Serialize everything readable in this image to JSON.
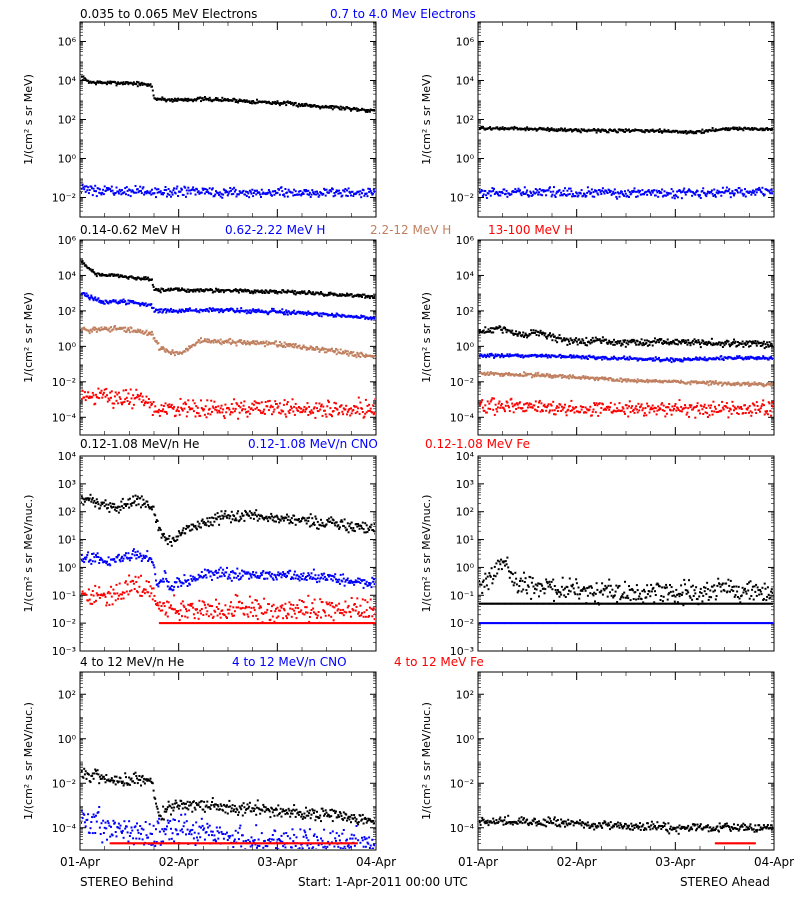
{
  "page": {
    "footer_left": "STEREO Behind",
    "footer_center": "Start:  1-Apr-2011 00:00 UTC",
    "footer_right": "STEREO Ahead",
    "x_ticks": [
      "01-Apr",
      "02-Apr",
      "03-Apr",
      "04-Apr"
    ]
  },
  "rows": [
    {
      "legend": [
        {
          "text": "0.035 to 0.065 MeV Electrons",
          "color": "#000000"
        },
        {
          "text": "0.7 to 4.0 Mev Electrons",
          "color": "#0000ff"
        }
      ]
    },
    {
      "legend": [
        {
          "text": "0.14-0.62 MeV H",
          "color": "#000000"
        },
        {
          "text": "0.62-2.22 MeV H",
          "color": "#0000ff"
        },
        {
          "text": "2.2-12 MeV H",
          "color": "#c08060"
        },
        {
          "text": "13-100 MeV H",
          "color": "#ff0000"
        }
      ]
    },
    {
      "legend": [
        {
          "text": "0.12-1.08 MeV/n He",
          "color": "#000000"
        },
        {
          "text": "0.12-1.08 MeV/n CNO",
          "color": "#0000ff"
        },
        {
          "text": "0.12-1.08 MeV Fe",
          "color": "#ff0000"
        }
      ]
    },
    {
      "legend": [
        {
          "text": "4 to 12 MeV/n He",
          "color": "#000000"
        },
        {
          "text": "4 to 12 MeV/n CNO",
          "color": "#0000ff"
        },
        {
          "text": "4 to 12 MeV Fe",
          "color": "#ff0000"
        }
      ]
    }
  ],
  "chart_data": [
    {
      "id": "behind-electrons",
      "type": "scatter",
      "ylog": true,
      "ylim": [
        0.001,
        10000000
      ],
      "ylabel": "1/(cm² s sr MeV)",
      "yticks": [
        {
          "v": 0.01,
          "label": "10⁻²"
        },
        {
          "v": 1,
          "label": "10⁰"
        },
        {
          "v": 100,
          "label": "10²"
        },
        {
          "v": 10000,
          "label": "10⁴"
        },
        {
          "v": 1000000,
          "label": "10⁶"
        }
      ],
      "xlim": [
        0,
        3
      ],
      "xunit": "days since 01-Apr-2011",
      "series": [
        {
          "color": "#000000",
          "x": [
            0,
            0.1,
            0.3,
            0.5,
            0.72,
            0.74,
            0.9,
            1.2,
            1.5,
            2.0,
            2.5,
            3.0
          ],
          "y": [
            15000,
            8000,
            7500,
            7500,
            5500,
            1200,
            1000,
            1100,
            1000,
            700,
            450,
            280
          ],
          "scatter": 0.05
        },
        {
          "color": "#0000ff",
          "x": [
            0,
            0.5,
            1.0,
            1.5,
            2.0,
            2.5,
            3.0
          ],
          "y": [
            0.025,
            0.02,
            0.02,
            0.018,
            0.018,
            0.018,
            0.018
          ],
          "scatter": 0.12
        }
      ]
    },
    {
      "id": "ahead-electrons",
      "type": "scatter",
      "ylog": true,
      "ylim": [
        0.001,
        10000000
      ],
      "ylabel": "1/(cm² s sr MeV)",
      "yticks": [
        {
          "v": 0.01,
          "label": "10⁻²"
        },
        {
          "v": 1,
          "label": "10⁰"
        },
        {
          "v": 100,
          "label": "10²"
        },
        {
          "v": 10000,
          "label": "10⁴"
        },
        {
          "v": 1000000,
          "label": "10⁶"
        }
      ],
      "xlim": [
        0,
        3
      ],
      "xunit": "days since 01-Apr-2011",
      "series": [
        {
          "color": "#000000",
          "x": [
            0,
            0.5,
            1.0,
            1.5,
            1.9,
            2.2,
            2.5,
            3.0
          ],
          "y": [
            35,
            33,
            28,
            27,
            25,
            22,
            35,
            30
          ],
          "scatter": 0.04
        },
        {
          "color": "#0000ff",
          "x": [
            0,
            1.0,
            2.0,
            3.0
          ],
          "y": [
            0.018,
            0.017,
            0.018,
            0.02
          ],
          "scatter": 0.12
        }
      ]
    },
    {
      "id": "behind-protons",
      "type": "scatter",
      "ylog": true,
      "ylim": [
        1e-05,
        1000000
      ],
      "ylabel": "1/(cm² s sr MeV)",
      "yticks": [
        {
          "v": 0.0001,
          "label": "10⁻⁴"
        },
        {
          "v": 0.01,
          "label": "10⁻²"
        },
        {
          "v": 1,
          "label": "10⁰"
        },
        {
          "v": 100,
          "label": "10²"
        },
        {
          "v": 10000,
          "label": "10⁴"
        },
        {
          "v": 1000000,
          "label": "10⁶"
        }
      ],
      "xlim": [
        0,
        3
      ],
      "xunit": "days since 01-Apr-2011",
      "series": [
        {
          "color": "#000000",
          "x": [
            0,
            0.15,
            0.4,
            0.72,
            0.74,
            1.0,
            1.5,
            2.0,
            2.5,
            3.0
          ],
          "y": [
            60000,
            12000,
            9000,
            6000,
            1500,
            1500,
            1400,
            1200,
            900,
            600
          ],
          "scatter": 0.05
        },
        {
          "color": "#0000ff",
          "x": [
            0,
            0.2,
            0.5,
            0.72,
            0.74,
            1.0,
            1.5,
            2.0,
            2.5,
            3.0
          ],
          "y": [
            1000,
            350,
            300,
            200,
            100,
            100,
            110,
            90,
            60,
            40
          ],
          "scatter": 0.06
        },
        {
          "color": "#c08060",
          "x": [
            0,
            0.1,
            0.4,
            0.72,
            0.8,
            0.9,
            1.0,
            1.2,
            1.5,
            2.0,
            2.5,
            3.0
          ],
          "y": [
            10,
            8,
            10,
            5,
            0.8,
            0.5,
            0.4,
            2,
            1.8,
            1.3,
            0.6,
            0.25
          ],
          "scatter": 0.07
        },
        {
          "color": "#ff0000",
          "x": [
            0,
            0.3,
            0.6,
            0.72,
            0.74,
            1.0,
            2.0,
            3.0
          ],
          "y": [
            0.002,
            0.0012,
            0.001,
            0.0007,
            0.0003,
            0.0003,
            0.0003,
            0.0003
          ],
          "scatter": 0.25
        }
      ]
    },
    {
      "id": "ahead-protons",
      "type": "scatter",
      "ylog": true,
      "ylim": [
        1e-05,
        1000000
      ],
      "ylabel": "1/(cm² s sr MeV)",
      "yticks": [
        {
          "v": 0.0001,
          "label": "10⁻⁴"
        },
        {
          "v": 0.01,
          "label": "10⁻²"
        },
        {
          "v": 1,
          "label": "10⁰"
        },
        {
          "v": 100,
          "label": "10²"
        },
        {
          "v": 10000,
          "label": "10⁴"
        },
        {
          "v": 1000000,
          "label": "10⁶"
        }
      ],
      "xlim": [
        0,
        3
      ],
      "xunit": "days since 01-Apr-2011",
      "series": [
        {
          "color": "#000000",
          "x": [
            0,
            0.2,
            0.4,
            0.6,
            0.9,
            1.2,
            1.6,
            2.0,
            2.5,
            3.0
          ],
          "y": [
            6,
            12,
            4,
            6,
            2,
            2,
            1.6,
            1.8,
            1.5,
            1.4
          ],
          "scatter": 0.1
        },
        {
          "color": "#0000ff",
          "x": [
            0,
            0.5,
            1.0,
            1.5,
            2.0,
            2.5,
            3.0
          ],
          "y": [
            0.3,
            0.3,
            0.25,
            0.2,
            0.17,
            0.22,
            0.22
          ],
          "scatter": 0.05
        },
        {
          "color": "#c08060",
          "x": [
            0,
            0.5,
            1.0,
            1.5,
            2.0,
            2.5,
            3.0
          ],
          "y": [
            0.03,
            0.025,
            0.018,
            0.012,
            0.01,
            0.008,
            0.007
          ],
          "scatter": 0.05
        },
        {
          "color": "#ff0000",
          "x": [
            0,
            0.5,
            1.0,
            1.5,
            2.0,
            2.5,
            3.0
          ],
          "y": [
            0.0004,
            0.0004,
            0.0003,
            0.0003,
            0.0003,
            0.0003,
            0.0003
          ],
          "scatter": 0.2
        }
      ]
    },
    {
      "id": "behind-heavy",
      "type": "scatter",
      "ylog": true,
      "ylim": [
        0.001,
        10000
      ],
      "ylabel": "1/(cm² s sr MeV/nuc.)",
      "yticks": [
        {
          "v": 0.001,
          "label": "10⁻³"
        },
        {
          "v": 0.01,
          "label": "10⁻²"
        },
        {
          "v": 0.1,
          "label": "10⁻¹"
        },
        {
          "v": 1,
          "label": "10⁰"
        },
        {
          "v": 10,
          "label": "10¹"
        },
        {
          "v": 100,
          "label": "10²"
        },
        {
          "v": 1000,
          "label": "10³"
        },
        {
          "v": 10000,
          "label": "10⁴"
        }
      ],
      "xlim": [
        0,
        3
      ],
      "xunit": "days since 01-Apr-2011",
      "series": [
        {
          "color": "#000000",
          "x": [
            0,
            0.2,
            0.35,
            0.55,
            0.72,
            0.8,
            0.9,
            1.0,
            1.2,
            1.5,
            2.0,
            2.5,
            3.0
          ],
          "y": [
            300,
            180,
            130,
            250,
            150,
            20,
            8,
            15,
            40,
            70,
            60,
            40,
            25
          ],
          "scatter": 0.1
        },
        {
          "color": "#0000ff",
          "x": [
            0,
            0.3,
            0.55,
            0.72,
            0.78,
            0.85,
            0.9,
            1.0,
            1.3,
            1.6,
            2.0,
            2.5,
            3.0
          ],
          "y": [
            2.5,
            1.6,
            3,
            2,
            0.2,
            0.5,
            0.15,
            0.3,
            0.6,
            0.6,
            0.5,
            0.45,
            0.25
          ],
          "scatter": 0.1
        },
        {
          "color": "#ff0000",
          "x": [
            0,
            0.3,
            0.6,
            0.72,
            0.8,
            1.0,
            2.0,
            3.0
          ],
          "y": [
            0.1,
            0.12,
            0.25,
            0.12,
            0.05,
            0.03,
            0.03,
            0.03
          ],
          "scatter": 0.2
        },
        {
          "color": "#ff0000",
          "x": [
            0.8,
            3.0
          ],
          "y": [
            0.01,
            0.01
          ],
          "scatter": 0.0
        }
      ]
    },
    {
      "id": "ahead-heavy",
      "type": "scatter",
      "ylog": true,
      "ylim": [
        0.001,
        10000
      ],
      "ylabel": "1/(cm² s sr MeV/nuc.)",
      "yticks": [
        {
          "v": 0.001,
          "label": "10⁻³"
        },
        {
          "v": 0.01,
          "label": "10⁻²"
        },
        {
          "v": 0.1,
          "label": "10⁻¹"
        },
        {
          "v": 1,
          "label": "10⁰"
        },
        {
          "v": 10,
          "label": "10¹"
        },
        {
          "v": 100,
          "label": "10²"
        },
        {
          "v": 1000,
          "label": "10³"
        },
        {
          "v": 10000,
          "label": "10⁴"
        }
      ],
      "xlim": [
        0,
        3
      ],
      "xunit": "days since 01-Apr-2011",
      "series": [
        {
          "color": "#000000",
          "x": [
            0,
            0.15,
            0.25,
            0.35,
            0.6,
            1.0,
            1.5,
            2.0,
            2.5,
            3.0
          ],
          "y": [
            0.2,
            0.5,
            2,
            0.3,
            0.2,
            0.15,
            0.12,
            0.12,
            0.15,
            0.1
          ],
          "scatter": 0.2
        },
        {
          "color": "#000000",
          "x": [
            0,
            3.0
          ],
          "y": [
            0.05,
            0.05
          ],
          "scatter": 0.0
        },
        {
          "color": "#0000ff",
          "x": [
            0,
            3.0
          ],
          "y": [
            0.01,
            0.01
          ],
          "scatter": 0.0
        }
      ]
    },
    {
      "id": "behind-high",
      "type": "scatter",
      "ylog": true,
      "ylim": [
        1e-05,
        1000
      ],
      "ylabel": "1/(cm² s sr MeV/nuc.)",
      "yticks": [
        {
          "v": 0.0001,
          "label": "10⁻⁴"
        },
        {
          "v": 0.01,
          "label": "10⁻²"
        },
        {
          "v": 1,
          "label": "10⁰"
        },
        {
          "v": 100,
          "label": "10²"
        }
      ],
      "xlim": [
        0,
        3
      ],
      "xunit": "days since 01-Apr-2011",
      "series": [
        {
          "color": "#000000",
          "x": [
            0,
            0.1,
            0.3,
            0.6,
            0.72,
            0.76,
            0.8,
            0.9,
            1.0,
            1.3,
            1.6,
            2.0,
            2.5,
            3.0
          ],
          "y": [
            0.04,
            0.02,
            0.015,
            0.015,
            0.01,
            0.001,
            0.0003,
            0.0008,
            0.001,
            0.001,
            0.0008,
            0.0006,
            0.0004,
            0.0002
          ],
          "scatter": 0.15
        },
        {
          "color": "#0000ff",
          "x": [
            0,
            0.3,
            0.7,
            1.0,
            1.5,
            2.0,
            3.0
          ],
          "y": [
            0.0002,
            0.0001,
            5e-05,
            0.0001,
            3e-05,
            2e-05,
            2e-05
          ],
          "scatter": 0.3
        },
        {
          "color": "#ff0000",
          "x": [
            0.3,
            1.0,
            2.0,
            2.8
          ],
          "y": [
            2e-05,
            2e-05,
            2e-05,
            2e-05
          ],
          "scatter": 0.0
        }
      ]
    },
    {
      "id": "ahead-high",
      "type": "scatter",
      "ylog": true,
      "ylim": [
        1e-05,
        1000
      ],
      "ylabel": "1/(cm² s sr MeV/nuc.)",
      "yticks": [
        {
          "v": 0.0001,
          "label": "10⁻⁴"
        },
        {
          "v": 0.01,
          "label": "10⁻²"
        },
        {
          "v": 1,
          "label": "10⁰"
        },
        {
          "v": 100,
          "label": "10²"
        }
      ],
      "xlim": [
        0,
        3
      ],
      "xunit": "days since 01-Apr-2011",
      "series": [
        {
          "color": "#000000",
          "x": [
            0,
            0.5,
            1.0,
            1.5,
            2.0,
            2.5,
            3.0
          ],
          "y": [
            0.0002,
            0.0002,
            0.00015,
            0.00012,
            0.0001,
            0.0001,
            0.0001
          ],
          "scatter": 0.1
        },
        {
          "color": "#ff0000",
          "x": [
            2.4,
            2.8
          ],
          "y": [
            2e-05,
            2e-05
          ],
          "scatter": 0.0
        }
      ]
    }
  ]
}
